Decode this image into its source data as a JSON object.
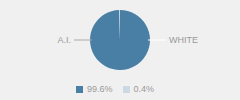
{
  "chart_data": {
    "type": "pie",
    "categories": [
      "A.I.",
      "WHITE"
    ],
    "values": [
      99.6,
      0.4
    ],
    "value_labels": [
      "99.6%",
      "0.4%"
    ],
    "colors": [
      "#4a7fa5",
      "#ccd9e3"
    ],
    "legend": "bottom"
  }
}
